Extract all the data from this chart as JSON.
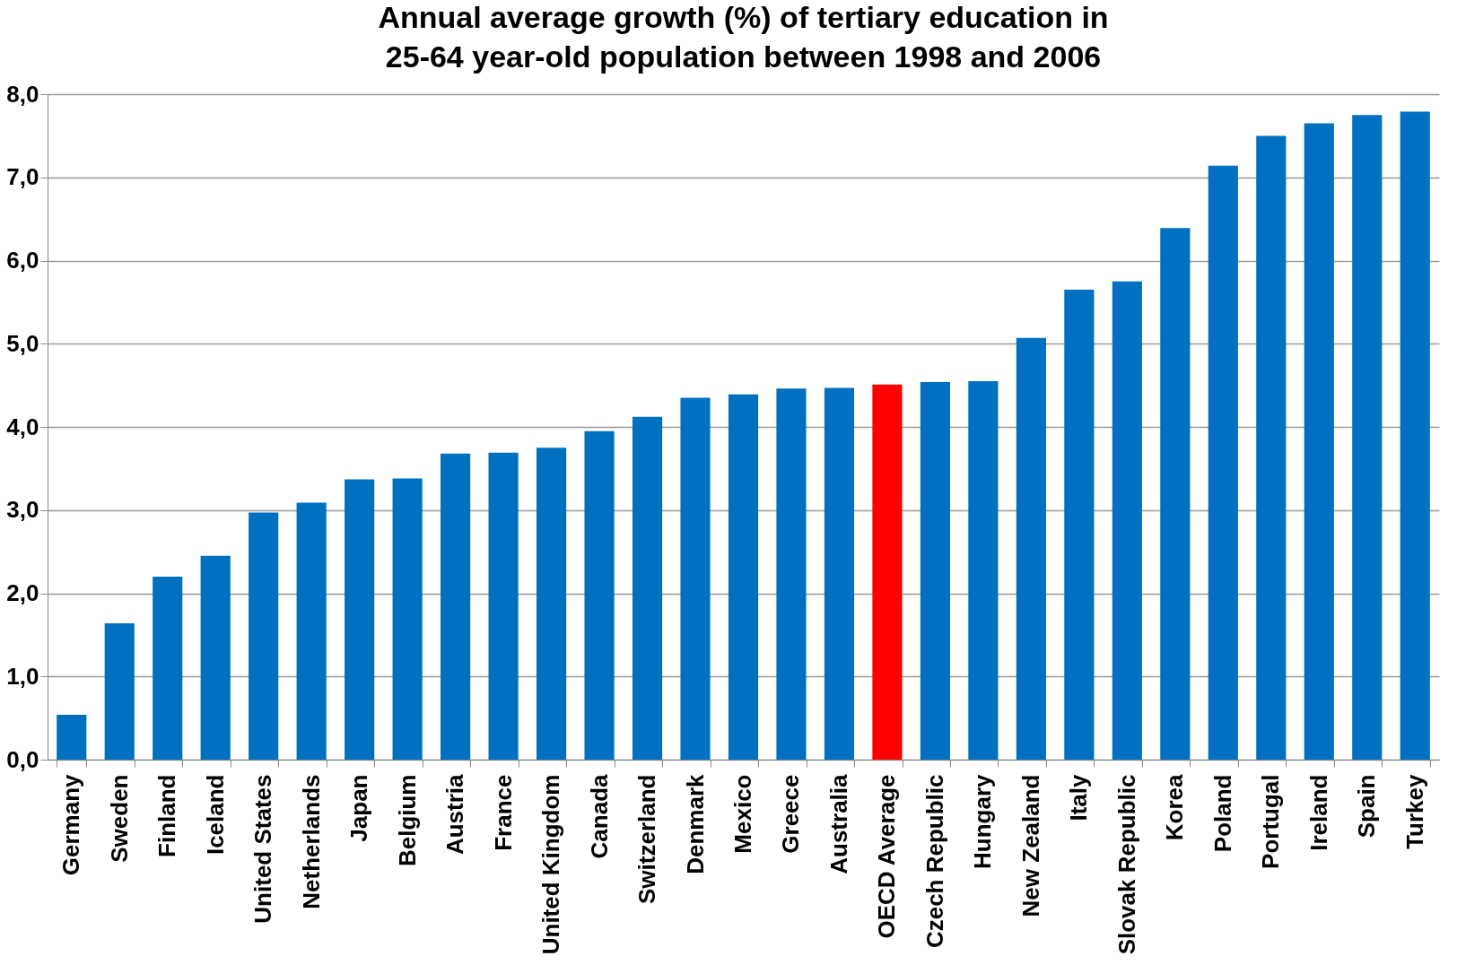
{
  "chart_data": {
    "type": "bar",
    "title": "Annual average growth (%) of tertiary education in\n25-64 year-old population between 1998 and 2006",
    "categories": [
      "Germany",
      "Sweden",
      "Finland",
      "Iceland",
      "United States",
      "Netherlands",
      "Japan",
      "Belgium",
      "Austria",
      "France",
      "United Kingdom",
      "Canada",
      "Switzerland",
      "Denmark",
      "Mexico",
      "Greece",
      "Australia",
      "OECD Average",
      "Czech Republic",
      "Hungary",
      "New Zealand",
      "Italy",
      "Slovak Republic",
      "Korea",
      "Poland",
      "Portugal",
      "Ireland",
      "Spain",
      "Turkey"
    ],
    "values": [
      0.54,
      1.64,
      2.2,
      2.45,
      2.97,
      3.09,
      3.37,
      3.38,
      3.68,
      3.69,
      3.75,
      3.95,
      4.12,
      4.35,
      4.39,
      4.46,
      4.47,
      4.51,
      4.54,
      4.55,
      5.07,
      5.65,
      5.75,
      6.39,
      7.14,
      7.5,
      7.65,
      7.75,
      7.79
    ],
    "colors": [
      "#0070c0",
      "#0070c0",
      "#0070c0",
      "#0070c0",
      "#0070c0",
      "#0070c0",
      "#0070c0",
      "#0070c0",
      "#0070c0",
      "#0070c0",
      "#0070c0",
      "#0070c0",
      "#0070c0",
      "#0070c0",
      "#0070c0",
      "#0070c0",
      "#0070c0",
      "#ff0000",
      "#0070c0",
      "#0070c0",
      "#0070c0",
      "#0070c0",
      "#0070c0",
      "#0070c0",
      "#0070c0",
      "#0070c0",
      "#0070c0",
      "#0070c0",
      "#0070c0"
    ],
    "ylim": [
      0,
      8
    ],
    "yticks": [
      {
        "value": 0,
        "label": "0,0"
      },
      {
        "value": 1,
        "label": "1,0"
      },
      {
        "value": 2,
        "label": "2,0"
      },
      {
        "value": 3,
        "label": "3,0"
      },
      {
        "value": 4,
        "label": "4,0"
      },
      {
        "value": 5,
        "label": "5,0"
      },
      {
        "value": 6,
        "label": "6,0"
      },
      {
        "value": 7,
        "label": "7,0"
      },
      {
        "value": 8,
        "label": "8,0"
      }
    ],
    "grid": "y"
  }
}
